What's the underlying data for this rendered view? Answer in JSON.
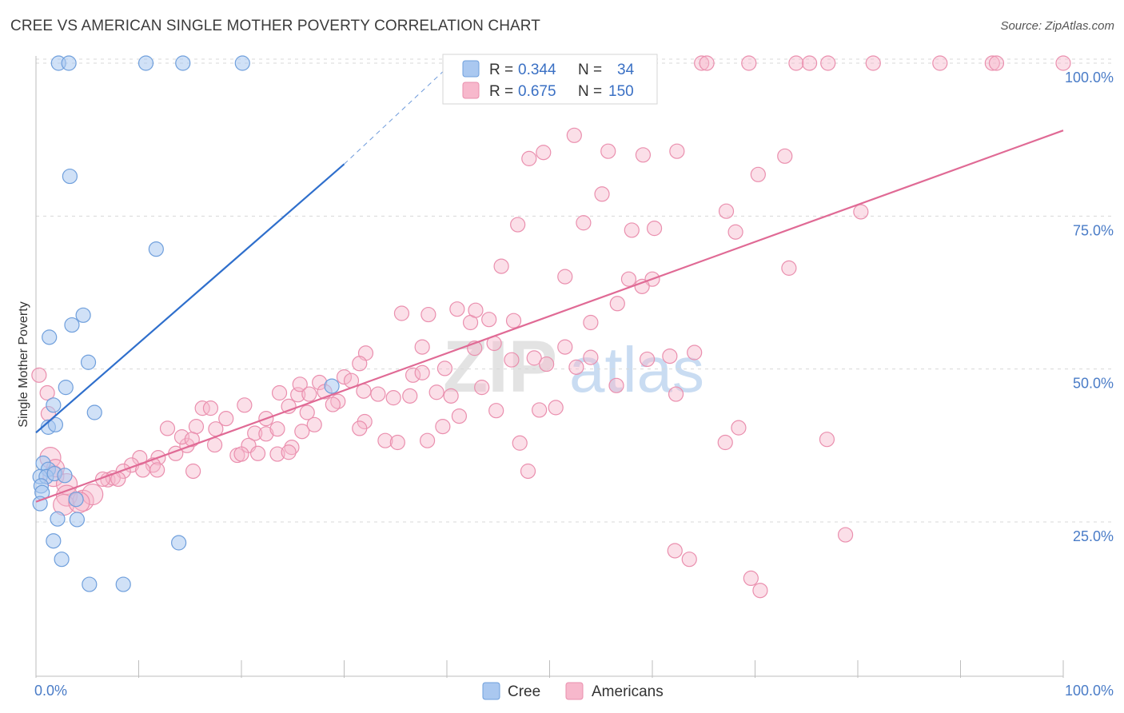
{
  "title": "CREE VS AMERICAN SINGLE MOTHER POVERTY CORRELATION CHART",
  "source": "Source: ZipAtlas.com",
  "watermark": {
    "zip": "ZIP",
    "atlas": "atlas"
  },
  "legend_box": {
    "rows": [
      {
        "r_label": "R = ",
        "r_value": "0.344",
        "n_label": "N = ",
        "n_value": "34"
      },
      {
        "r_label": "R = ",
        "r_value": "0.675",
        "n_label": "N = ",
        "n_value": "150"
      }
    ]
  },
  "bottom_legend": [
    {
      "label": "Cree"
    },
    {
      "label": "Americans"
    }
  ],
  "colors": {
    "cree_fill": "#aac8f0",
    "cree_stroke": "#6f9fdc",
    "cree_line": "#2f6fcc",
    "americans_fill": "#f7b8cc",
    "americans_stroke": "#ea8fae",
    "americans_line": "#e06a95",
    "tick_text": "#4a7cc7",
    "grid": "#d8d8d8"
  },
  "chart_data": {
    "type": "scatter",
    "title": "CREE VS AMERICAN SINGLE MOTHER POVERTY CORRELATION CHART",
    "xlabel": "",
    "ylabel": "Single Mother Poverty",
    "xlim": [
      0,
      100
    ],
    "ylim": [
      0,
      103
    ],
    "x_tick_labels": [
      "0.0%",
      "100.0%"
    ],
    "y_ticks": [
      25,
      50,
      75,
      100
    ],
    "y_tick_labels": [
      "25.0%",
      "50.0%",
      "75.0%",
      "100.0%"
    ],
    "grid": "horizontal dashed",
    "legend": "top-center and bottom",
    "series": [
      {
        "name": "Cree",
        "R": 0.344,
        "N": 34,
        "trend": {
          "x": [
            0,
            30
          ],
          "y": [
            39.6,
            83.5
          ],
          "dashed_to": [
            40.5,
            100
          ]
        },
        "points": [
          [
            2.2,
            100,
            9
          ],
          [
            3.2,
            100,
            9
          ],
          [
            10.7,
            100,
            9
          ],
          [
            14.3,
            100,
            9
          ],
          [
            20.1,
            100,
            9
          ],
          [
            3.3,
            81.5,
            9
          ],
          [
            11.7,
            69.6,
            9
          ],
          [
            4.6,
            58.8,
            9
          ],
          [
            3.5,
            57.2,
            9
          ],
          [
            1.3,
            55.2,
            9
          ],
          [
            5.1,
            51.1,
            9
          ],
          [
            2.9,
            47.0,
            9
          ],
          [
            28.8,
            47.2,
            9
          ],
          [
            1.7,
            44.1,
            9
          ],
          [
            5.7,
            42.9,
            9
          ],
          [
            1.2,
            40.5,
            9
          ],
          [
            1.9,
            40.9,
            9
          ],
          [
            0.7,
            34.6,
            9
          ],
          [
            1.2,
            33.6,
            9
          ],
          [
            0.4,
            32.4,
            9
          ],
          [
            1.0,
            32.4,
            9
          ],
          [
            1.8,
            32.9,
            9
          ],
          [
            2.8,
            32.6,
            9
          ],
          [
            0.5,
            30.9,
            9
          ],
          [
            0.6,
            29.8,
            9
          ],
          [
            0.4,
            28.0,
            9
          ],
          [
            3.9,
            28.7,
            9
          ],
          [
            4.0,
            25.4,
            9
          ],
          [
            2.1,
            25.5,
            9
          ],
          [
            1.7,
            21.9,
            9
          ],
          [
            2.5,
            18.9,
            9
          ],
          [
            13.9,
            21.6,
            9
          ],
          [
            5.2,
            14.8,
            9
          ],
          [
            8.5,
            14.8,
            9
          ]
        ]
      },
      {
        "name": "Americans",
        "R": 0.675,
        "N": 150,
        "trend": {
          "x": [
            0,
            100
          ],
          "y": [
            28.3,
            89.0
          ]
        },
        "points": [
          [
            54.1,
            100,
            9
          ],
          [
            54.7,
            100,
            9
          ],
          [
            64.8,
            100,
            9
          ],
          [
            65.3,
            100,
            9
          ],
          [
            69.4,
            100,
            9
          ],
          [
            74.0,
            100,
            9
          ],
          [
            75.3,
            100,
            9
          ],
          [
            77.1,
            100,
            9
          ],
          [
            81.5,
            100,
            9
          ],
          [
            88.0,
            100,
            9
          ],
          [
            93.1,
            100,
            9
          ],
          [
            93.5,
            100,
            9
          ],
          [
            100.0,
            100,
            9
          ],
          [
            52.4,
            88.2,
            9
          ],
          [
            49.4,
            85.4,
            9
          ],
          [
            48.0,
            84.4,
            9
          ],
          [
            55.7,
            85.6,
            9
          ],
          [
            59.1,
            85.0,
            9
          ],
          [
            62.4,
            85.6,
            9
          ],
          [
            72.9,
            84.8,
            9
          ],
          [
            70.3,
            81.8,
            9
          ],
          [
            55.1,
            78.6,
            9
          ],
          [
            67.2,
            75.8,
            9
          ],
          [
            80.3,
            75.7,
            9
          ],
          [
            46.9,
            73.6,
            9
          ],
          [
            53.3,
            73.9,
            9
          ],
          [
            58.0,
            72.7,
            9
          ],
          [
            60.2,
            73.0,
            9
          ],
          [
            68.1,
            72.4,
            9
          ],
          [
            45.3,
            66.8,
            9
          ],
          [
            51.5,
            65.1,
            9
          ],
          [
            57.7,
            64.7,
            9
          ],
          [
            60.0,
            64.7,
            9
          ],
          [
            73.3,
            66.5,
            9
          ],
          [
            56.6,
            60.7,
            9
          ],
          [
            59.0,
            63.5,
            9
          ],
          [
            35.6,
            59.1,
            9
          ],
          [
            38.2,
            58.9,
            9
          ],
          [
            41.0,
            59.8,
            9
          ],
          [
            42.3,
            57.6,
            9
          ],
          [
            42.8,
            59.6,
            9
          ],
          [
            44.1,
            58.1,
            9
          ],
          [
            46.5,
            57.9,
            9
          ],
          [
            54.0,
            57.6,
            9
          ],
          [
            37.6,
            53.6,
            9
          ],
          [
            42.7,
            53.4,
            9
          ],
          [
            44.6,
            54.2,
            9
          ],
          [
            46.3,
            51.5,
            9
          ],
          [
            48.5,
            51.8,
            9
          ],
          [
            49.7,
            50.8,
            9
          ],
          [
            51.5,
            53.6,
            9
          ],
          [
            52.6,
            50.3,
            9
          ],
          [
            54.0,
            51.9,
            9
          ],
          [
            59.5,
            51.6,
            9
          ],
          [
            61.7,
            52.1,
            9
          ],
          [
            64.1,
            52.7,
            9
          ],
          [
            32.1,
            52.6,
            9
          ],
          [
            31.5,
            50.9,
            9
          ],
          [
            36.7,
            49.0,
            9
          ],
          [
            37.6,
            49.4,
            9
          ],
          [
            39.8,
            50.1,
            9
          ],
          [
            30.0,
            48.7,
            9
          ],
          [
            30.7,
            48.1,
            9
          ],
          [
            27.6,
            47.8,
            9
          ],
          [
            23.7,
            46.1,
            9
          ],
          [
            25.5,
            45.8,
            9
          ],
          [
            25.7,
            47.5,
            9
          ],
          [
            26.6,
            45.9,
            9
          ],
          [
            28.1,
            46.3,
            9
          ],
          [
            31.9,
            46.4,
            9
          ],
          [
            33.3,
            45.9,
            9
          ],
          [
            34.8,
            45.3,
            9
          ],
          [
            36.4,
            45.6,
            9
          ],
          [
            39.0,
            46.2,
            9
          ],
          [
            40.4,
            45.6,
            9
          ],
          [
            43.4,
            47.0,
            9
          ],
          [
            62.3,
            45.9,
            9
          ],
          [
            56.5,
            47.3,
            9
          ],
          [
            20.3,
            44.1,
            9
          ],
          [
            24.6,
            43.9,
            9
          ],
          [
            29.4,
            44.7,
            9
          ],
          [
            16.2,
            43.6,
            9
          ],
          [
            17.0,
            43.6,
            9
          ],
          [
            18.5,
            41.9,
            9
          ],
          [
            22.4,
            41.9,
            9
          ],
          [
            26.4,
            42.9,
            9
          ],
          [
            28.9,
            44.2,
            9
          ],
          [
            32.0,
            41.4,
            9
          ],
          [
            39.6,
            40.6,
            9
          ],
          [
            41.2,
            42.3,
            9
          ],
          [
            44.8,
            43.2,
            9
          ],
          [
            49.0,
            43.3,
            9
          ],
          [
            50.6,
            43.7,
            9
          ],
          [
            1.2,
            42.7,
            9
          ],
          [
            12.8,
            40.3,
            9
          ],
          [
            15.6,
            40.6,
            9
          ],
          [
            17.5,
            40.2,
            9
          ],
          [
            21.3,
            39.5,
            9
          ],
          [
            22.4,
            39.4,
            9
          ],
          [
            23.5,
            40.2,
            9
          ],
          [
            25.9,
            39.8,
            9
          ],
          [
            27.1,
            40.9,
            9
          ],
          [
            31.5,
            40.3,
            9
          ],
          [
            34.0,
            38.3,
            9
          ],
          [
            35.2,
            38.0,
            9
          ],
          [
            38.1,
            38.3,
            9
          ],
          [
            47.1,
            37.9,
            9
          ],
          [
            67.1,
            38.0,
            9
          ],
          [
            68.4,
            40.4,
            9
          ],
          [
            77.0,
            38.5,
            9
          ],
          [
            14.7,
            37.5,
            9
          ],
          [
            14.2,
            38.9,
            9
          ],
          [
            15.2,
            38.5,
            9
          ],
          [
            17.4,
            37.6,
            9
          ],
          [
            20.7,
            37.5,
            9
          ],
          [
            24.9,
            37.2,
            9
          ],
          [
            19.6,
            35.9,
            9
          ],
          [
            20.0,
            36.1,
            9
          ],
          [
            21.6,
            36.2,
            9
          ],
          [
            23.5,
            36.1,
            9
          ],
          [
            24.6,
            36.4,
            9
          ],
          [
            13.6,
            36.2,
            9
          ],
          [
            11.9,
            35.5,
            9
          ],
          [
            10.1,
            35.5,
            9
          ],
          [
            11.4,
            34.3,
            9
          ],
          [
            9.3,
            34.3,
            9
          ],
          [
            8.5,
            33.3,
            9
          ],
          [
            10.4,
            33.5,
            9
          ],
          [
            11.8,
            33.5,
            9
          ],
          [
            15.3,
            33.3,
            9
          ],
          [
            7.0,
            31.9,
            9
          ],
          [
            7.5,
            32.2,
            9
          ],
          [
            6.5,
            32.0,
            9
          ],
          [
            8.0,
            32.0,
            9
          ],
          [
            47.9,
            33.3,
            9
          ],
          [
            0.3,
            49.0,
            9
          ],
          [
            1.1,
            46.1,
            9
          ],
          [
            1.4,
            35.5,
            13
          ],
          [
            1.7,
            32.5,
            13
          ],
          [
            3.0,
            31.2,
            13
          ],
          [
            3.0,
            29.3,
            13
          ],
          [
            4.6,
            28.5,
            13
          ],
          [
            5.5,
            29.5,
            13
          ],
          [
            2.7,
            27.8,
            13
          ],
          [
            4.2,
            28.2,
            13
          ],
          [
            1.9,
            33.8,
            11
          ],
          [
            78.8,
            22.9,
            9
          ],
          [
            62.2,
            20.3,
            9
          ],
          [
            63.6,
            18.9,
            9
          ],
          [
            69.6,
            15.8,
            9
          ],
          [
            70.5,
            13.8,
            9
          ]
        ]
      }
    ]
  }
}
